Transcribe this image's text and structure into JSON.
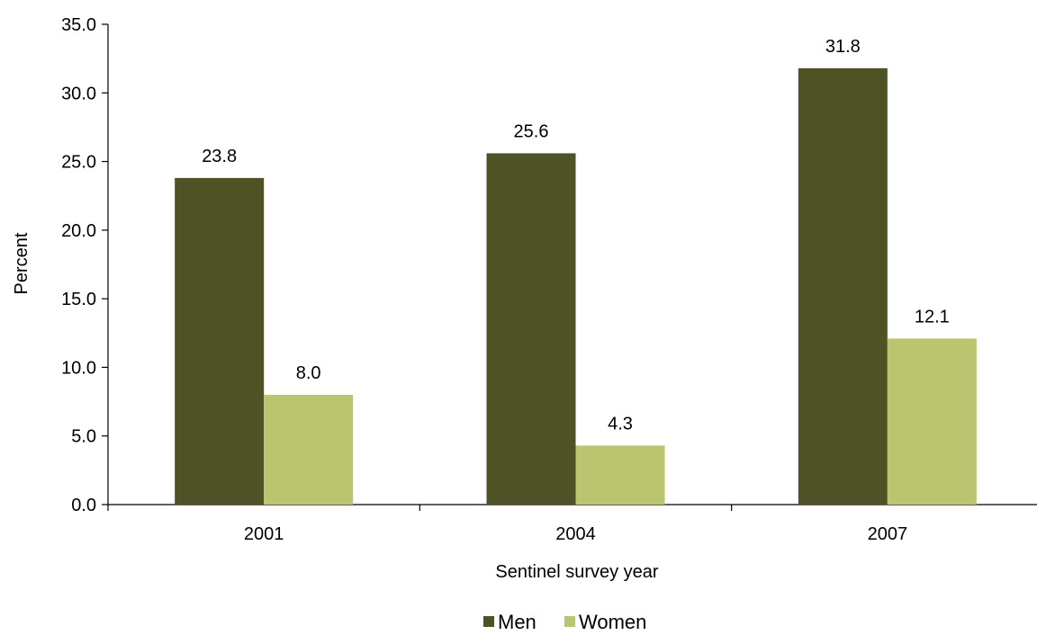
{
  "chart_data": {
    "type": "bar",
    "title": "",
    "xlabel": "Sentinel survey year",
    "ylabel": "Percent",
    "categories": [
      "2001",
      "2004",
      "2007"
    ],
    "series": [
      {
        "name": "Men",
        "values": [
          23.8,
          25.6,
          31.8
        ],
        "labels": [
          "23.8",
          "25.6",
          "31.8"
        ],
        "color": "#4e5224"
      },
      {
        "name": "Women",
        "values": [
          8.0,
          4.3,
          12.1
        ],
        "labels": [
          "8.0",
          "4.3",
          "12.1"
        ],
        "color": "#bbc46f"
      }
    ],
    "ylim": [
      0,
      35
    ],
    "yticks": [
      "0.0",
      "5.0",
      "10.0",
      "15.0",
      "20.0",
      "25.0",
      "30.0",
      "35.0"
    ],
    "grid": false,
    "legend_position": "bottom"
  }
}
